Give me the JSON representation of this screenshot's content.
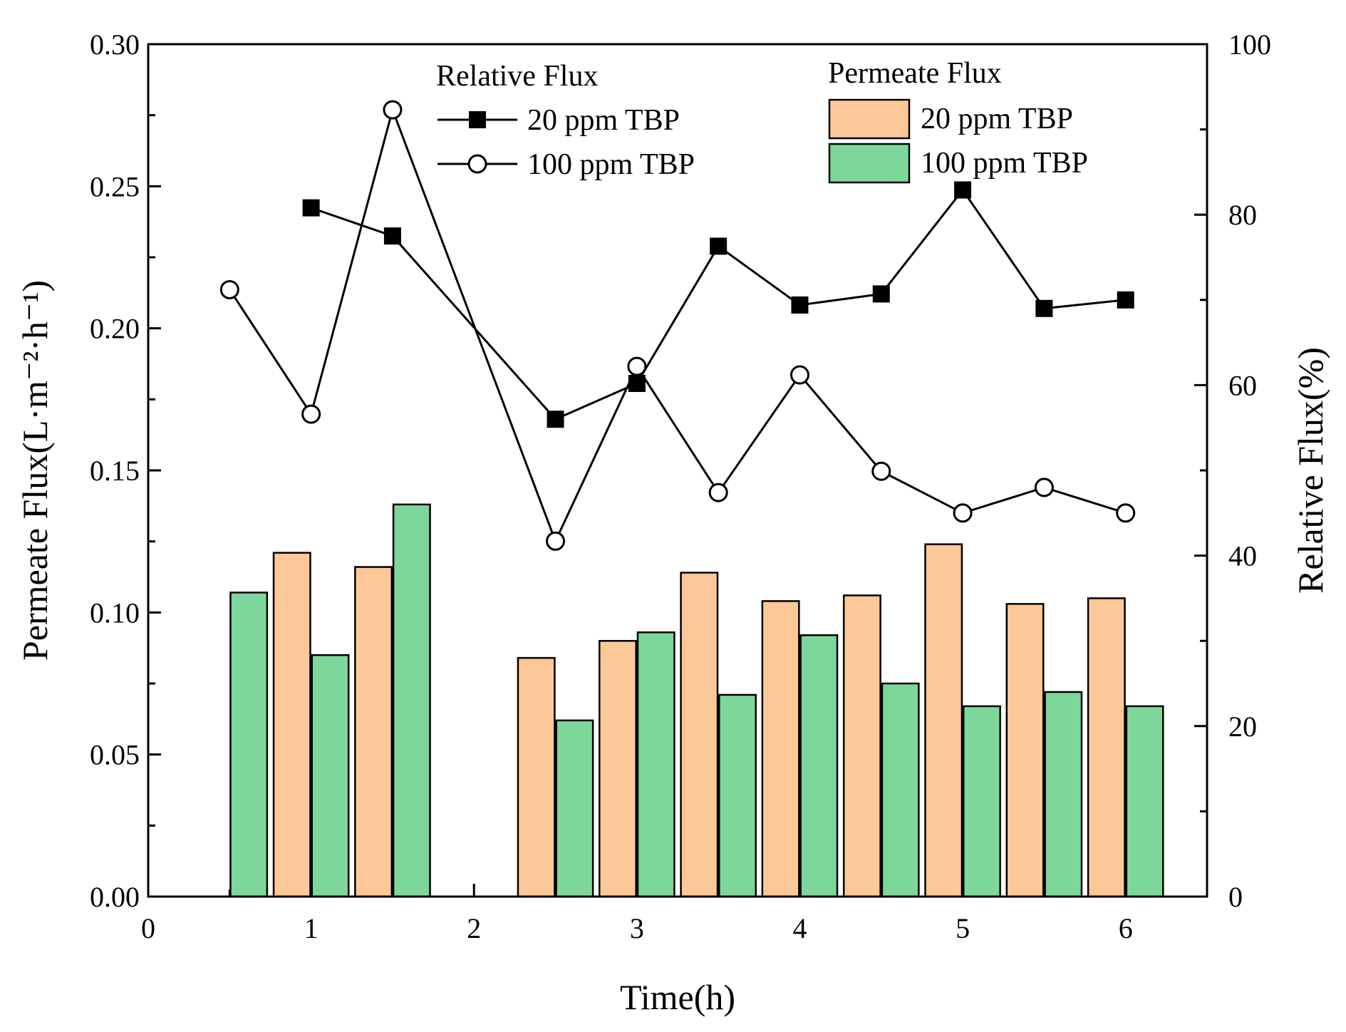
{
  "chart_data": {
    "type": "bar",
    "xlabel": "Time(h)",
    "ylabel": "Permeate Flux(L·m⁻²·h⁻¹)",
    "y2label": "Relative Flux(%)",
    "xlim": [
      0,
      6.5
    ],
    "ylim": [
      0,
      0.3
    ],
    "y2lim": [
      0,
      100
    ],
    "x_ticks": [
      "0",
      "1",
      "2",
      "3",
      "4",
      "5",
      "6"
    ],
    "y_ticks": [
      "0.00",
      "0.05",
      "0.10",
      "0.15",
      "0.20",
      "0.25",
      "0.30"
    ],
    "y2_ticks": [
      "0",
      "20",
      "40",
      "60",
      "80",
      "100"
    ],
    "bar_series": [
      {
        "name": "20 ppm TBP",
        "color": "#FDC897",
        "x": [
          0.5,
          1,
          1.5,
          2.5,
          3,
          3.5,
          4,
          4.5,
          5,
          5.5,
          6
        ],
        "values": [
          null,
          0.121,
          0.116,
          0.084,
          0.09,
          0.114,
          0.104,
          0.106,
          0.124,
          0.103,
          0.105
        ]
      },
      {
        "name": "100 ppm TBP",
        "color": "#7ED79A",
        "x": [
          0.5,
          1,
          1.5,
          2.5,
          3,
          3.5,
          4,
          4.5,
          5,
          5.5,
          6
        ],
        "values": [
          0.107,
          0.085,
          0.138,
          0.062,
          0.093,
          0.071,
          0.092,
          0.075,
          0.067,
          0.072,
          0.067
        ]
      }
    ],
    "line_series": [
      {
        "name": "20 ppm TBP",
        "marker": "filled-square",
        "x": [
          1,
          1.5,
          2.5,
          3,
          3.5,
          4,
          4.5,
          5,
          5.5,
          6
        ],
        "values": [
          80.8,
          77.5,
          56.0,
          60.2,
          76.3,
          69.4,
          70.7,
          82.9,
          69.0,
          70.0
        ]
      },
      {
        "name": "100 ppm TBP",
        "marker": "open-circle",
        "x": [
          0.5,
          1,
          1.5,
          2.5,
          3,
          3.5,
          4,
          4.5,
          5,
          5.5,
          6
        ],
        "values": [
          71.2,
          56.6,
          92.3,
          41.7,
          62.2,
          47.4,
          61.2,
          49.9,
          45.0,
          48.0,
          45.0
        ]
      }
    ],
    "legend": {
      "relative_title": "Relative Flux",
      "permeate_title": "Permeate Flux",
      "placement": "top"
    },
    "grid": false
  }
}
